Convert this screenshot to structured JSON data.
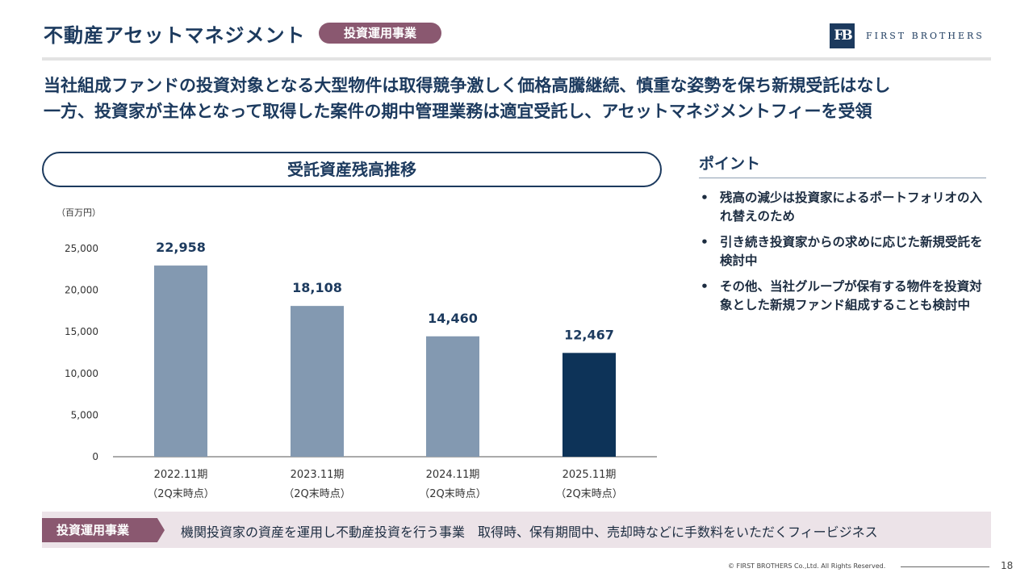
{
  "header": {
    "title": "不動産アセットマネジメント",
    "tag": "投資運用事業",
    "logo_mark": "FB",
    "logo_text": "FIRST BROTHERS"
  },
  "headline": {
    "line1": "当社組成ファンドの投資対象となる大型物件は取得競争激しく価格高騰継続、慎重な姿勢を保ち新規受託はなし",
    "line2": "一方、投資家が主体となって取得した案件の期中管理業務は適宜受託し、アセットマネジメントフィーを受領"
  },
  "chart_title": "受託資産残高推移",
  "chart_data": {
    "type": "bar",
    "unit": "（百万円）",
    "categories": [
      "2022.11期",
      "2023.11期",
      "2024.11期",
      "2025.11期"
    ],
    "category_sub": [
      "（2Q末時点）",
      "（2Q末時点）",
      "（2Q末時点）",
      "（2Q末時点）"
    ],
    "values": [
      22958,
      18108,
      14460,
      12467
    ],
    "value_labels": [
      "22,958",
      "18,108",
      "14,460",
      "12,467"
    ],
    "yticks": [
      0,
      5000,
      10000,
      15000,
      20000,
      25000
    ],
    "ytick_labels": [
      "0",
      "5,000",
      "10,000",
      "15,000",
      "20,000",
      "25,000"
    ],
    "ylim": [
      0,
      25000
    ],
    "colors": [
      "#8399b1",
      "#8399b1",
      "#8399b1",
      "#0d3358"
    ],
    "grid": false
  },
  "points": {
    "title": "ポイント",
    "bullet": "•",
    "items": [
      "残高の減少は投資家によるポートフォリオの入れ替えのため",
      "引き続き投資家からの求めに応じた新規受託を検討中",
      "その他、当社グループが保有する物件を投資対象とした新規ファンド組成することも検討中"
    ]
  },
  "footer": {
    "tag": "投資運用事業",
    "text": "機関投資家の資産を運用し不動産投資を行う事業　取得時、保有期間中、売却時などに手数料をいただくフィービジネス",
    "copyright": "© FIRST BROTHERS Co.,Ltd. All Rights Reserved.",
    "page": "18"
  }
}
